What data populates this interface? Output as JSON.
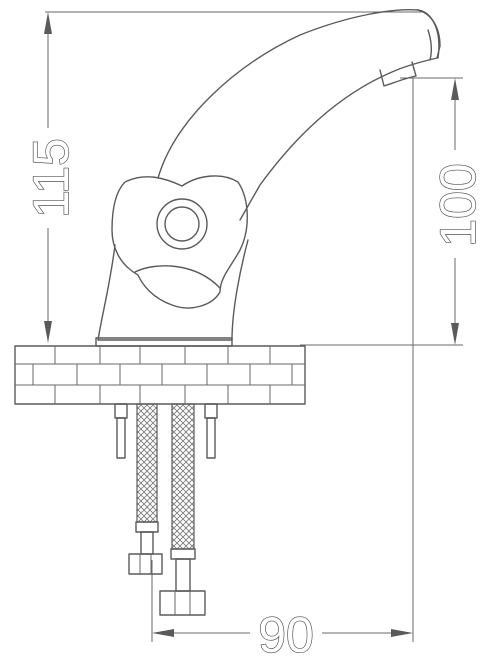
{
  "drawing": {
    "dimensions": {
      "height_total": "115",
      "height_spout": "100",
      "width_reach": "90"
    }
  }
}
